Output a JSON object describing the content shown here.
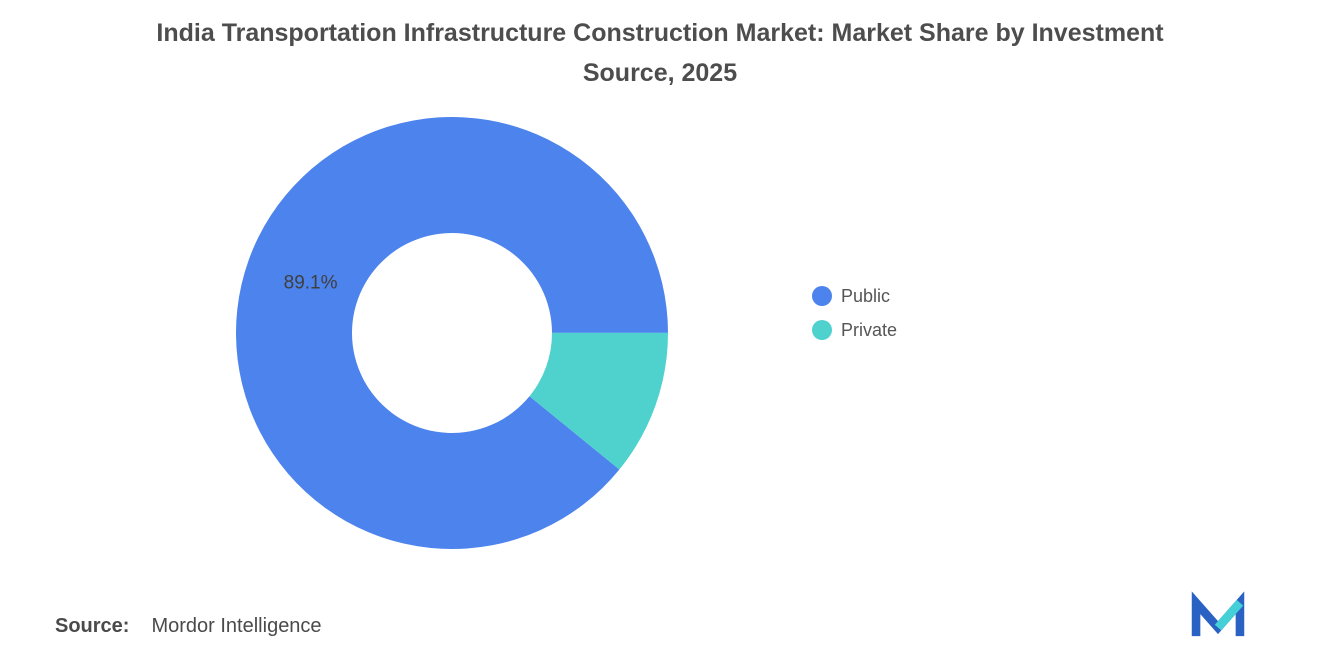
{
  "title": "India Transportation Infrastructure Construction Market: Market Share by Investment Source, 2025",
  "source": {
    "label": "Source:",
    "value": "Mordor Intelligence"
  },
  "logo": {
    "name": "mordor-intelligence-logo",
    "blue": "#2A62C4",
    "teal": "#45CFD6"
  },
  "chart_data": {
    "type": "pie",
    "subtype": "donut",
    "title": "India Transportation Infrastructure Construction Market: Market Share by Investment Source, 2025",
    "slices": [
      {
        "label": "Public",
        "value": 89.1,
        "color": "#4C83EC",
        "data_label": "89.1%"
      },
      {
        "label": "Private",
        "value": 10.9,
        "color": "#4FD1CE",
        "data_label": ""
      }
    ],
    "rotation_deg": 129.2,
    "inner_radius_ratio": 0.463,
    "legend_position": "right",
    "hole_color": "#ffffff",
    "label_color": "#3f3f3f"
  }
}
